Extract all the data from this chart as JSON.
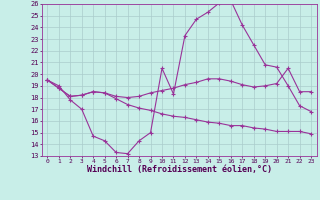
{
  "background_color": "#c8eee8",
  "grid_color": "#aacccc",
  "line_color": "#993399",
  "xlim": [
    0,
    23
  ],
  "ylim": [
    13,
    26
  ],
  "hours": [
    0,
    1,
    2,
    3,
    4,
    5,
    6,
    7,
    8,
    9,
    10,
    11,
    12,
    13,
    14,
    15,
    16,
    17,
    18,
    19,
    20,
    21,
    22,
    23
  ],
  "line1": [
    19.5,
    19.0,
    17.8,
    17.0,
    14.7,
    14.3,
    13.3,
    13.2,
    14.3,
    15.0,
    20.5,
    18.3,
    23.3,
    24.7,
    25.3,
    26.1,
    26.3,
    24.2,
    22.5,
    20.8,
    20.6,
    19.0,
    17.3,
    16.8
  ],
  "line2": [
    19.5,
    18.8,
    18.1,
    18.2,
    18.5,
    18.4,
    18.1,
    18.0,
    18.1,
    18.4,
    18.6,
    18.8,
    19.1,
    19.3,
    19.6,
    19.6,
    19.4,
    19.1,
    18.9,
    19.0,
    19.2,
    20.5,
    18.5,
    18.5
  ],
  "line3": [
    19.5,
    18.8,
    18.1,
    18.2,
    18.5,
    18.4,
    17.9,
    17.4,
    17.1,
    16.9,
    16.6,
    16.4,
    16.3,
    16.1,
    15.9,
    15.8,
    15.6,
    15.6,
    15.4,
    15.3,
    15.1,
    15.1,
    15.1,
    14.9
  ],
  "xlabel": "Windchill (Refroidissement éolien,°C)",
  "xtick_labels": [
    "0",
    "1",
    "2",
    "3",
    "4",
    "5",
    "6",
    "7",
    "8",
    "9",
    "10",
    "11",
    "12",
    "13",
    "14",
    "15",
    "16",
    "17",
    "18",
    "19",
    "20",
    "21",
    "22",
    "23"
  ],
  "ytick_vals": [
    13,
    14,
    15,
    16,
    17,
    18,
    19,
    20,
    21,
    22,
    23,
    24,
    25,
    26
  ]
}
